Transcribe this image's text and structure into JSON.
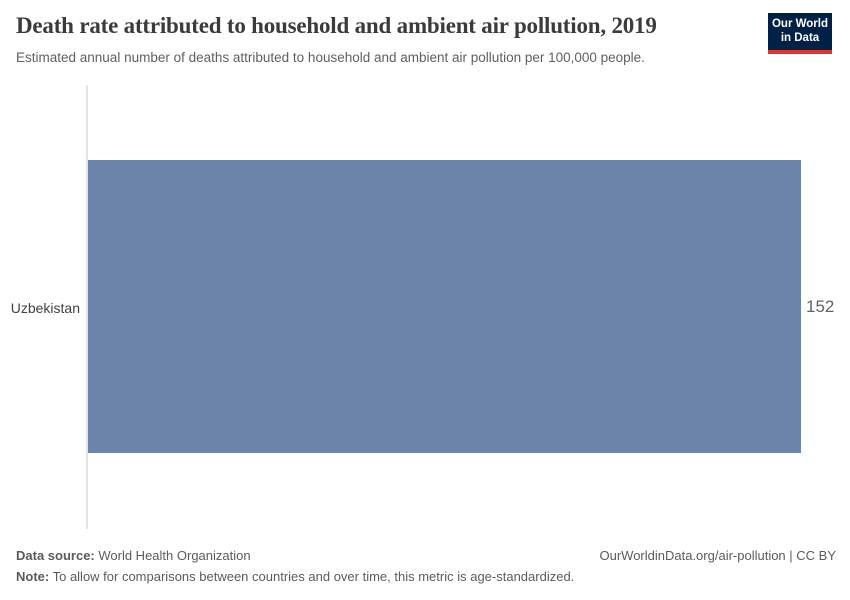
{
  "header": {
    "title": "Death rate attributed to household and ambient air pollution, 2019",
    "subtitle": "Estimated annual number of deaths attributed to household and ambient air pollution per 100,000 people.",
    "logo": {
      "line1": "Our World",
      "line2": "in Data"
    }
  },
  "chart_data": {
    "type": "bar",
    "orientation": "horizontal",
    "categories": [
      "Uzbekistan"
    ],
    "values": [
      152
    ],
    "value_labels": [
      "152"
    ],
    "title": "Death rate attributed to household and ambient air pollution, 2019",
    "xlabel": "",
    "ylabel": "",
    "xlim": [
      0,
      152
    ],
    "grid": false,
    "legend": "none",
    "bar_color": "#6c83ab"
  },
  "footer": {
    "data_source_label": "Data source:",
    "data_source_value": " World Health Organization",
    "note_label": "Note:",
    "note_value": " To allow for comparisons between countries and over time, this metric is age-standardized.",
    "attribution": "OurWorldinData.org/air-pollution | CC BY"
  },
  "colors": {
    "bar": "#6c83ab",
    "logo_background": "#002147",
    "logo_accent_red": "#dc352c",
    "axis_line": "#e3e3e3",
    "title_text": "#3b3b3b",
    "body_text": "#5b5b5b"
  }
}
